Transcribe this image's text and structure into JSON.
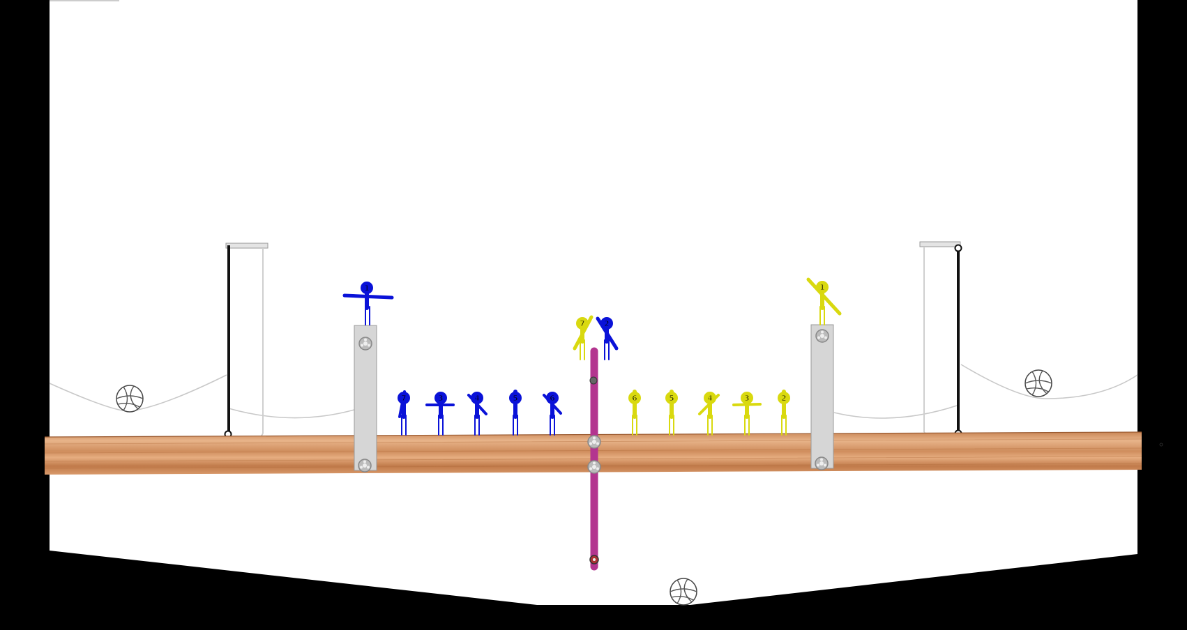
{
  "colors": {
    "background": "#000000",
    "arena": "#ffffff",
    "floor_light": "#e3a87a",
    "floor_dark": "#b86d3e",
    "center_pole": "#b3358f",
    "rail": "#111111",
    "team_blue": "#0a12d8",
    "team_yellow": "#d9d90f",
    "post": "#d3d3d3"
  },
  "icons": {
    "ball": "volleyball-icon",
    "pivot": "pivot-bolt-icon"
  },
  "teams": {
    "blue": {
      "players": [
        "1",
        "2",
        "3",
        "4",
        "5",
        "6",
        "7"
      ]
    },
    "yellow": {
      "players": [
        "1",
        "2",
        "3",
        "4",
        "5",
        "6",
        "7"
      ]
    }
  }
}
